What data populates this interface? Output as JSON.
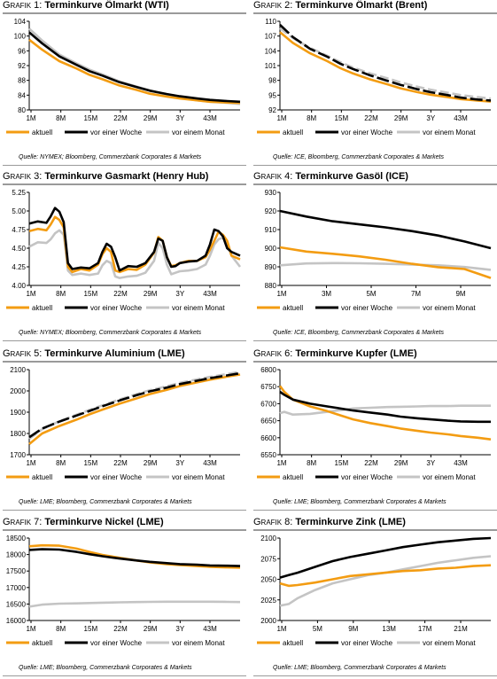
{
  "style": {
    "aktuell": "#f39c12",
    "woche": "#000000",
    "monat": "#c4c4c4"
  },
  "legend_labels": [
    "aktuell",
    "vor einer Woche",
    "vor einem Monat"
  ],
  "charts": [
    {
      "prefix": "Grafik 1:",
      "title": "Terminkurve Ölmarkt (WTI)",
      "source": "Quelle: NYMEX; Bloomberg, Commerzbank Corporates & Markets",
      "chart_data": {
        "type": "line",
        "x_ticks": [
          "1M",
          "8M",
          "15M",
          "22M",
          "29M",
          "3Y",
          "43M"
        ],
        "y_ticks": [
          "80",
          "84",
          "88",
          "92",
          "96",
          "100",
          "104"
        ],
        "ylim": [
          80,
          104
        ],
        "x": [
          1,
          4,
          8,
          12,
          15,
          18,
          22,
          26,
          29,
          33,
          36,
          40,
          43,
          47,
          50
        ],
        "series": [
          {
            "name": "aktuell",
            "values": [
              99,
              96.3,
              93.2,
              91.2,
              89.5,
              88.3,
              86.6,
              85.4,
              84.4,
              83.6,
              83.1,
              82.6,
              82.2,
              82,
              81.9
            ]
          },
          {
            "name": "vor einer Woche",
            "values": [
              101,
              98.0,
              94.5,
              92.2,
              90.5,
              89.3,
              87.5,
              86.2,
              85.2,
              84.3,
              83.7,
              83.1,
              82.7,
              82.4,
              82.2
            ]
          },
          {
            "name": "vor einem Monat",
            "values": [
              102,
              98.8,
              95.0,
              92.6,
              90.9,
              89.6,
              87.7,
              86.3,
              85.3,
              84.1,
              83.3,
              82.6,
              82.2,
              81.9,
              81.6
            ]
          }
        ]
      }
    },
    {
      "prefix": "Grafik 2:",
      "title": "Terminkurve Ölmarkt (Brent)",
      "source": "Quelle: ICE, Bloomberg, Commerzbank Corporates & Markets",
      "chart_data": {
        "type": "line",
        "x_ticks": [
          "1M",
          "8M",
          "15M",
          "22M",
          "29M",
          "3Y",
          "43M"
        ],
        "y_ticks": [
          "92",
          "95",
          "98",
          "101",
          "104",
          "107",
          "110"
        ],
        "ylim": [
          92,
          110
        ],
        "x": [
          1,
          4,
          8,
          12,
          15,
          18,
          22,
          26,
          29,
          33,
          36,
          40,
          43,
          47,
          50
        ],
        "series": [
          {
            "name": "aktuell",
            "values": [
              107.8,
              105.6,
              103.5,
              101.9,
              100.5,
              99.4,
              98.2,
              97.2,
              96.4,
              95.6,
              95.1,
              94.6,
              94.2,
              93.9,
              93.7
            ]
          },
          {
            "name": "vor einer Woche",
            "values": [
              109.3,
              106.8,
              104.4,
              102.8,
              101.4,
              100.3,
              99,
              97.9,
              97.1,
              96.2,
              95.6,
              95.0,
              94.5,
              94.1,
              93.9
            ]
          },
          {
            "name": "vor einem Monat",
            "values": [
              108.6,
              106.6,
              104.6,
              103.0,
              101.7,
              100.6,
              99.4,
              98.4,
              97.6,
              96.7,
              96.1,
              95.5,
              95.0,
              94.6,
              94.3
            ]
          }
        ]
      }
    },
    {
      "prefix": "Grafik 3:",
      "title": "Terminkurve Gasmarkt (Henry Hub)",
      "source": "Quelle: NYMEX; Bloomberg, Commerzbank Corporates & Markets",
      "chart_data": {
        "type": "line",
        "x_ticks": [
          "1M",
          "8M",
          "15M",
          "22M",
          "29M",
          "3Y",
          "43M"
        ],
        "y_ticks": [
          "4.00",
          "4.25",
          "4.50",
          "4.75",
          "5.00",
          "5.25"
        ],
        "ylim": [
          4.0,
          5.25
        ],
        "x": [
          1,
          3,
          5,
          6,
          7,
          8,
          9,
          10,
          11,
          13,
          15,
          17,
          18,
          19,
          20,
          21,
          22,
          24,
          26,
          28,
          30,
          31,
          32,
          33,
          34,
          35,
          36,
          38,
          40,
          42,
          43,
          44,
          45,
          46,
          47,
          48,
          50
        ],
        "series": [
          {
            "name": "aktuell",
            "values": [
              4.73,
              4.76,
              4.74,
              4.82,
              4.92,
              4.88,
              4.78,
              4.25,
              4.18,
              4.22,
              4.2,
              4.28,
              4.42,
              4.5,
              4.45,
              4.2,
              4.18,
              4.22,
              4.21,
              4.28,
              4.44,
              4.65,
              4.6,
              4.38,
              4.26,
              4.27,
              4.3,
              4.33,
              4.33,
              4.38,
              4.48,
              4.6,
              4.72,
              4.68,
              4.6,
              4.4,
              4.35
            ]
          },
          {
            "name": "vor einer Woche",
            "values": [
              4.83,
              4.86,
              4.84,
              4.93,
              5.04,
              4.99,
              4.85,
              4.3,
              4.22,
              4.24,
              4.23,
              4.3,
              4.45,
              4.56,
              4.52,
              4.38,
              4.2,
              4.26,
              4.25,
              4.3,
              4.45,
              4.63,
              4.6,
              4.38,
              4.25,
              4.26,
              4.3,
              4.32,
              4.33,
              4.4,
              4.55,
              4.75,
              4.73,
              4.66,
              4.5,
              4.45,
              4.4
            ]
          },
          {
            "name": "vor einem Monat",
            "values": [
              4.52,
              4.58,
              4.57,
              4.62,
              4.7,
              4.74,
              4.68,
              4.2,
              4.14,
              4.16,
              4.14,
              4.16,
              4.27,
              4.33,
              4.3,
              4.12,
              4.1,
              4.12,
              4.13,
              4.17,
              4.33,
              4.57,
              4.5,
              4.28,
              4.15,
              4.17,
              4.19,
              4.2,
              4.22,
              4.28,
              4.4,
              4.55,
              4.62,
              4.64,
              4.55,
              4.4,
              4.25
            ]
          }
        ]
      }
    },
    {
      "prefix": "Grafik 4:",
      "title": "Terminkurve Gasöl (ICE)",
      "source": "Quelle: ICE, Bloomberg, Commerzbank Corporates & Markets",
      "chart_data": {
        "type": "line",
        "x_ticks": [
          "1M",
          "3M",
          "5M",
          "7M",
          "9M"
        ],
        "y_ticks": [
          "880",
          "890",
          "900",
          "910",
          "920",
          "930"
        ],
        "ylim": [
          880,
          930
        ],
        "x": [
          1,
          2,
          3,
          4,
          5,
          6,
          7,
          8,
          9
        ],
        "series": [
          {
            "name": "aktuell",
            "values": [
              900.5,
              898.2,
              897,
              895.6,
              893.8,
              891.6,
              889.8,
              888.8,
              884
            ]
          },
          {
            "name": "vor einer Woche",
            "values": [
              920,
              917,
              914.5,
              912.8,
              911.2,
              909.2,
              906.8,
              903.6,
              900
            ]
          },
          {
            "name": "vor einem Monat",
            "values": [
              890.8,
              891.8,
              892,
              891.9,
              891.6,
              891.2,
              890.8,
              889.9,
              888.4
            ]
          }
        ]
      }
    },
    {
      "prefix": "Grafik 5:",
      "title": "Terminkurve Aluminium (LME)",
      "source": "Quelle: LME; Bloomberg, Commerzbank Corporates & Markets",
      "chart_data": {
        "type": "line",
        "x_ticks": [
          "1M",
          "8M",
          "15M",
          "22M",
          "29M",
          "3Y",
          "43M"
        ],
        "y_ticks": [
          "1700",
          "1800",
          "1900",
          "2000",
          "2100"
        ],
        "ylim": [
          1700,
          2100
        ],
        "x": [
          1,
          4,
          8,
          12,
          15,
          18,
          22,
          26,
          29,
          33,
          36,
          40,
          43,
          47,
          50
        ],
        "series": [
          {
            "name": "aktuell",
            "values": [
              1750,
              1800,
              1835,
              1865,
              1890,
              1912,
              1940,
              1965,
              1985,
              2005,
              2023,
              2040,
              2053,
              2067,
              2077
            ]
          },
          {
            "name": "vor einer Woche",
            "values": [
              1782,
              1823,
              1856,
              1884,
              1906,
              1928,
              1955,
              1980,
              1998,
              2016,
              2032,
              2048,
              2060,
              2073,
              2083
            ]
          },
          {
            "name": "vor einem Monat",
            "values": [
              1775,
              1820,
              1858,
              1888,
              1911,
              1932,
              1960,
              1985,
              2003,
              2022,
              2038,
              2054,
              2066,
              2079,
              2090
            ]
          }
        ]
      }
    },
    {
      "prefix": "Grafik 6:",
      "title": "Terminkurve Kupfer (LME)",
      "source": "Quelle: LME; Bloomberg, Commerzbank Corporates & Markets",
      "chart_data": {
        "type": "line",
        "x_ticks": [
          "1M",
          "8M",
          "15M",
          "22M",
          "29M",
          "3Y",
          "43M"
        ],
        "y_ticks": [
          "6550",
          "6600",
          "6650",
          "6700",
          "6750",
          "6800"
        ],
        "ylim": [
          6550,
          6800
        ],
        "x": [
          1,
          2,
          4,
          8,
          12,
          15,
          18,
          22,
          26,
          29,
          33,
          36,
          40,
          43,
          47,
          50
        ],
        "series": [
          {
            "name": "aktuell",
            "values": [
              6752,
              6735,
              6712,
              6692,
              6678,
              6666,
              6654,
              6643,
              6634,
              6627,
              6620,
              6615,
              6610,
              6605,
              6600,
              6595
            ]
          },
          {
            "name": "vor einer Woche",
            "values": [
              6735,
              6726,
              6712,
              6700,
              6692,
              6686,
              6680,
              6674,
              6668,
              6662,
              6657,
              6654,
              6650,
              6648,
              6647,
              6647
            ]
          },
          {
            "name": "vor einem Monat",
            "values": [
              6672,
              6676,
              6668,
              6670,
              6676,
              6681,
              6686,
              6688,
              6690,
              6691,
              6692,
              6693,
              6693,
              6694,
              6694,
              6694
            ]
          }
        ]
      }
    },
    {
      "prefix": "Grafik 7:",
      "title": "Terminkurve Nickel (LME)",
      "source": "Quelle: LME; Bloomberg, Commerzbank Corporates & Markets",
      "chart_data": {
        "type": "line",
        "x_ticks": [
          "1M",
          "8M",
          "15M",
          "22M",
          "29M",
          "3Y",
          "43M"
        ],
        "y_ticks": [
          "16000",
          "16500",
          "17000",
          "17500",
          "18000",
          "18500"
        ],
        "ylim": [
          16000,
          18500
        ],
        "x": [
          1,
          4,
          8,
          12,
          15,
          18,
          22,
          26,
          29,
          33,
          36,
          40,
          43,
          47,
          50
        ],
        "series": [
          {
            "name": "aktuell",
            "values": [
              18250,
              18280,
              18270,
              18180,
              18080,
              17990,
              17900,
              17820,
              17760,
              17710,
              17680,
              17650,
              17630,
              17610,
              17600
            ]
          },
          {
            "name": "vor einer Woche",
            "values": [
              18140,
              18160,
              18150,
              18080,
              18010,
              17950,
              17880,
              17820,
              17780,
              17740,
              17710,
              17690,
              17670,
              17660,
              17650
            ]
          },
          {
            "name": "vor einem Monat",
            "values": [
              16420,
              16480,
              16510,
              16520,
              16530,
              16540,
              16550,
              16560,
              16565,
              16570,
              16570,
              16570,
              16570,
              16565,
              16560
            ]
          }
        ]
      }
    },
    {
      "prefix": "Grafik 8:",
      "title": "Terminkurve Zink (LME)",
      "source": "Quelle: LME; Bloomberg, Commerzbank Corporates & Markets",
      "chart_data": {
        "type": "line",
        "x_ticks": [
          "1M",
          "5M",
          "9M",
          "13M",
          "17M",
          "21M"
        ],
        "y_ticks": [
          "2000",
          "2025",
          "2050",
          "2075",
          "2100"
        ],
        "ylim": [
          2000,
          2100
        ],
        "x": [
          1,
          2,
          3,
          5,
          7,
          9,
          11,
          13,
          15,
          17,
          19,
          21,
          23,
          25
        ],
        "series": [
          {
            "name": "aktuell",
            "values": [
              2045,
              2042,
              2043,
              2046,
              2050,
              2054,
              2056,
              2058,
              2060,
              2061,
              2063,
              2064,
              2066,
              2067
            ]
          },
          {
            "name": "vor einer Woche",
            "values": [
              2052,
              2055,
              2058,
              2065,
              2072,
              2077,
              2081,
              2085,
              2089,
              2092,
              2095,
              2097,
              2099,
              2100
            ]
          },
          {
            "name": "vor einem Monat",
            "values": [
              2018,
              2020,
              2027,
              2037,
              2045,
              2050,
              2055,
              2058,
              2062,
              2066,
              2070,
              2073,
              2076,
              2078
            ]
          }
        ]
      }
    }
  ]
}
